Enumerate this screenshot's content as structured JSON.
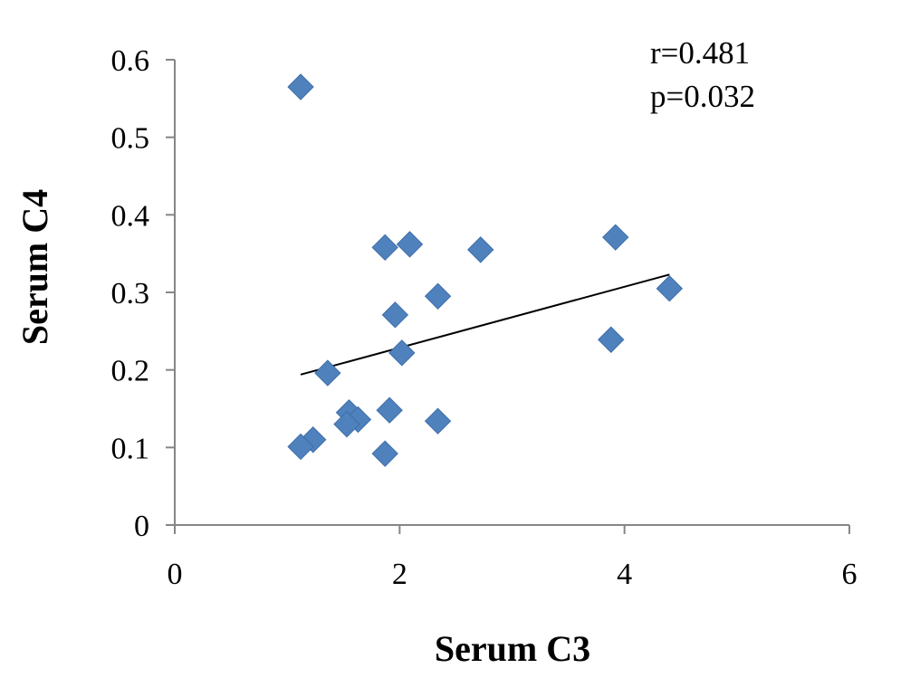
{
  "chart_data": {
    "type": "scatter",
    "title": "",
    "xlabel": "Serum C3",
    "ylabel": "Serum C4",
    "xlim": [
      0,
      6
    ],
    "ylim": [
      0,
      0.6
    ],
    "xticks": [
      "0",
      "2",
      "4",
      "6"
    ],
    "yticks": [
      "0",
      "0.1",
      "0.2",
      "0.3",
      "0.4",
      "0.5",
      "0.6"
    ],
    "grid": false,
    "marker": "diamond",
    "marker_color": "#4f81bd",
    "points": [
      {
        "x": 1.12,
        "y": 0.565
      },
      {
        "x": 1.87,
        "y": 0.358
      },
      {
        "x": 2.09,
        "y": 0.362
      },
      {
        "x": 2.72,
        "y": 0.355
      },
      {
        "x": 3.92,
        "y": 0.371
      },
      {
        "x": 2.34,
        "y": 0.295
      },
      {
        "x": 4.4,
        "y": 0.305
      },
      {
        "x": 1.96,
        "y": 0.271
      },
      {
        "x": 3.88,
        "y": 0.239
      },
      {
        "x": 2.02,
        "y": 0.222
      },
      {
        "x": 1.36,
        "y": 0.196
      },
      {
        "x": 1.91,
        "y": 0.148
      },
      {
        "x": 1.55,
        "y": 0.145
      },
      {
        "x": 1.63,
        "y": 0.136
      },
      {
        "x": 1.53,
        "y": 0.13
      },
      {
        "x": 2.34,
        "y": 0.134
      },
      {
        "x": 1.23,
        "y": 0.11
      },
      {
        "x": 1.12,
        "y": 0.101
      },
      {
        "x": 1.87,
        "y": 0.092
      }
    ],
    "trendline": {
      "color": "#000000",
      "x": [
        1.12,
        4.4
      ],
      "y": [
        0.194,
        0.323
      ]
    },
    "annotations": [
      "r=0.481",
      "p=0.032"
    ]
  }
}
